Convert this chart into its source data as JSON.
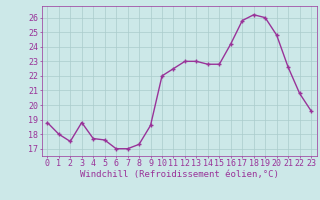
{
  "x": [
    0,
    1,
    2,
    3,
    4,
    5,
    6,
    7,
    8,
    9,
    10,
    11,
    12,
    13,
    14,
    15,
    16,
    17,
    18,
    19,
    20,
    21,
    22,
    23
  ],
  "y": [
    18.8,
    18.0,
    17.5,
    18.8,
    17.7,
    17.6,
    17.0,
    17.0,
    17.3,
    18.6,
    22.0,
    22.5,
    23.0,
    23.0,
    22.8,
    22.8,
    24.2,
    25.8,
    26.2,
    26.0,
    24.8,
    22.6,
    20.8,
    19.6
  ],
  "line_color": "#993399",
  "marker": "+",
  "marker_size": 3,
  "linewidth": 1.0,
  "bg_color": "#cce8e8",
  "grid_color": "#aacccc",
  "xlabel": "Windchill (Refroidissement éolien,°C)",
  "xlabel_color": "#993399",
  "xlabel_fontsize": 6.5,
  "tick_color": "#993399",
  "tick_fontsize": 6,
  "ylim": [
    16.5,
    26.8
  ],
  "xlim": [
    -0.5,
    23.5
  ],
  "yticks": [
    17,
    18,
    19,
    20,
    21,
    22,
    23,
    24,
    25,
    26
  ],
  "xticks": [
    0,
    1,
    2,
    3,
    4,
    5,
    6,
    7,
    8,
    9,
    10,
    11,
    12,
    13,
    14,
    15,
    16,
    17,
    18,
    19,
    20,
    21,
    22,
    23
  ]
}
